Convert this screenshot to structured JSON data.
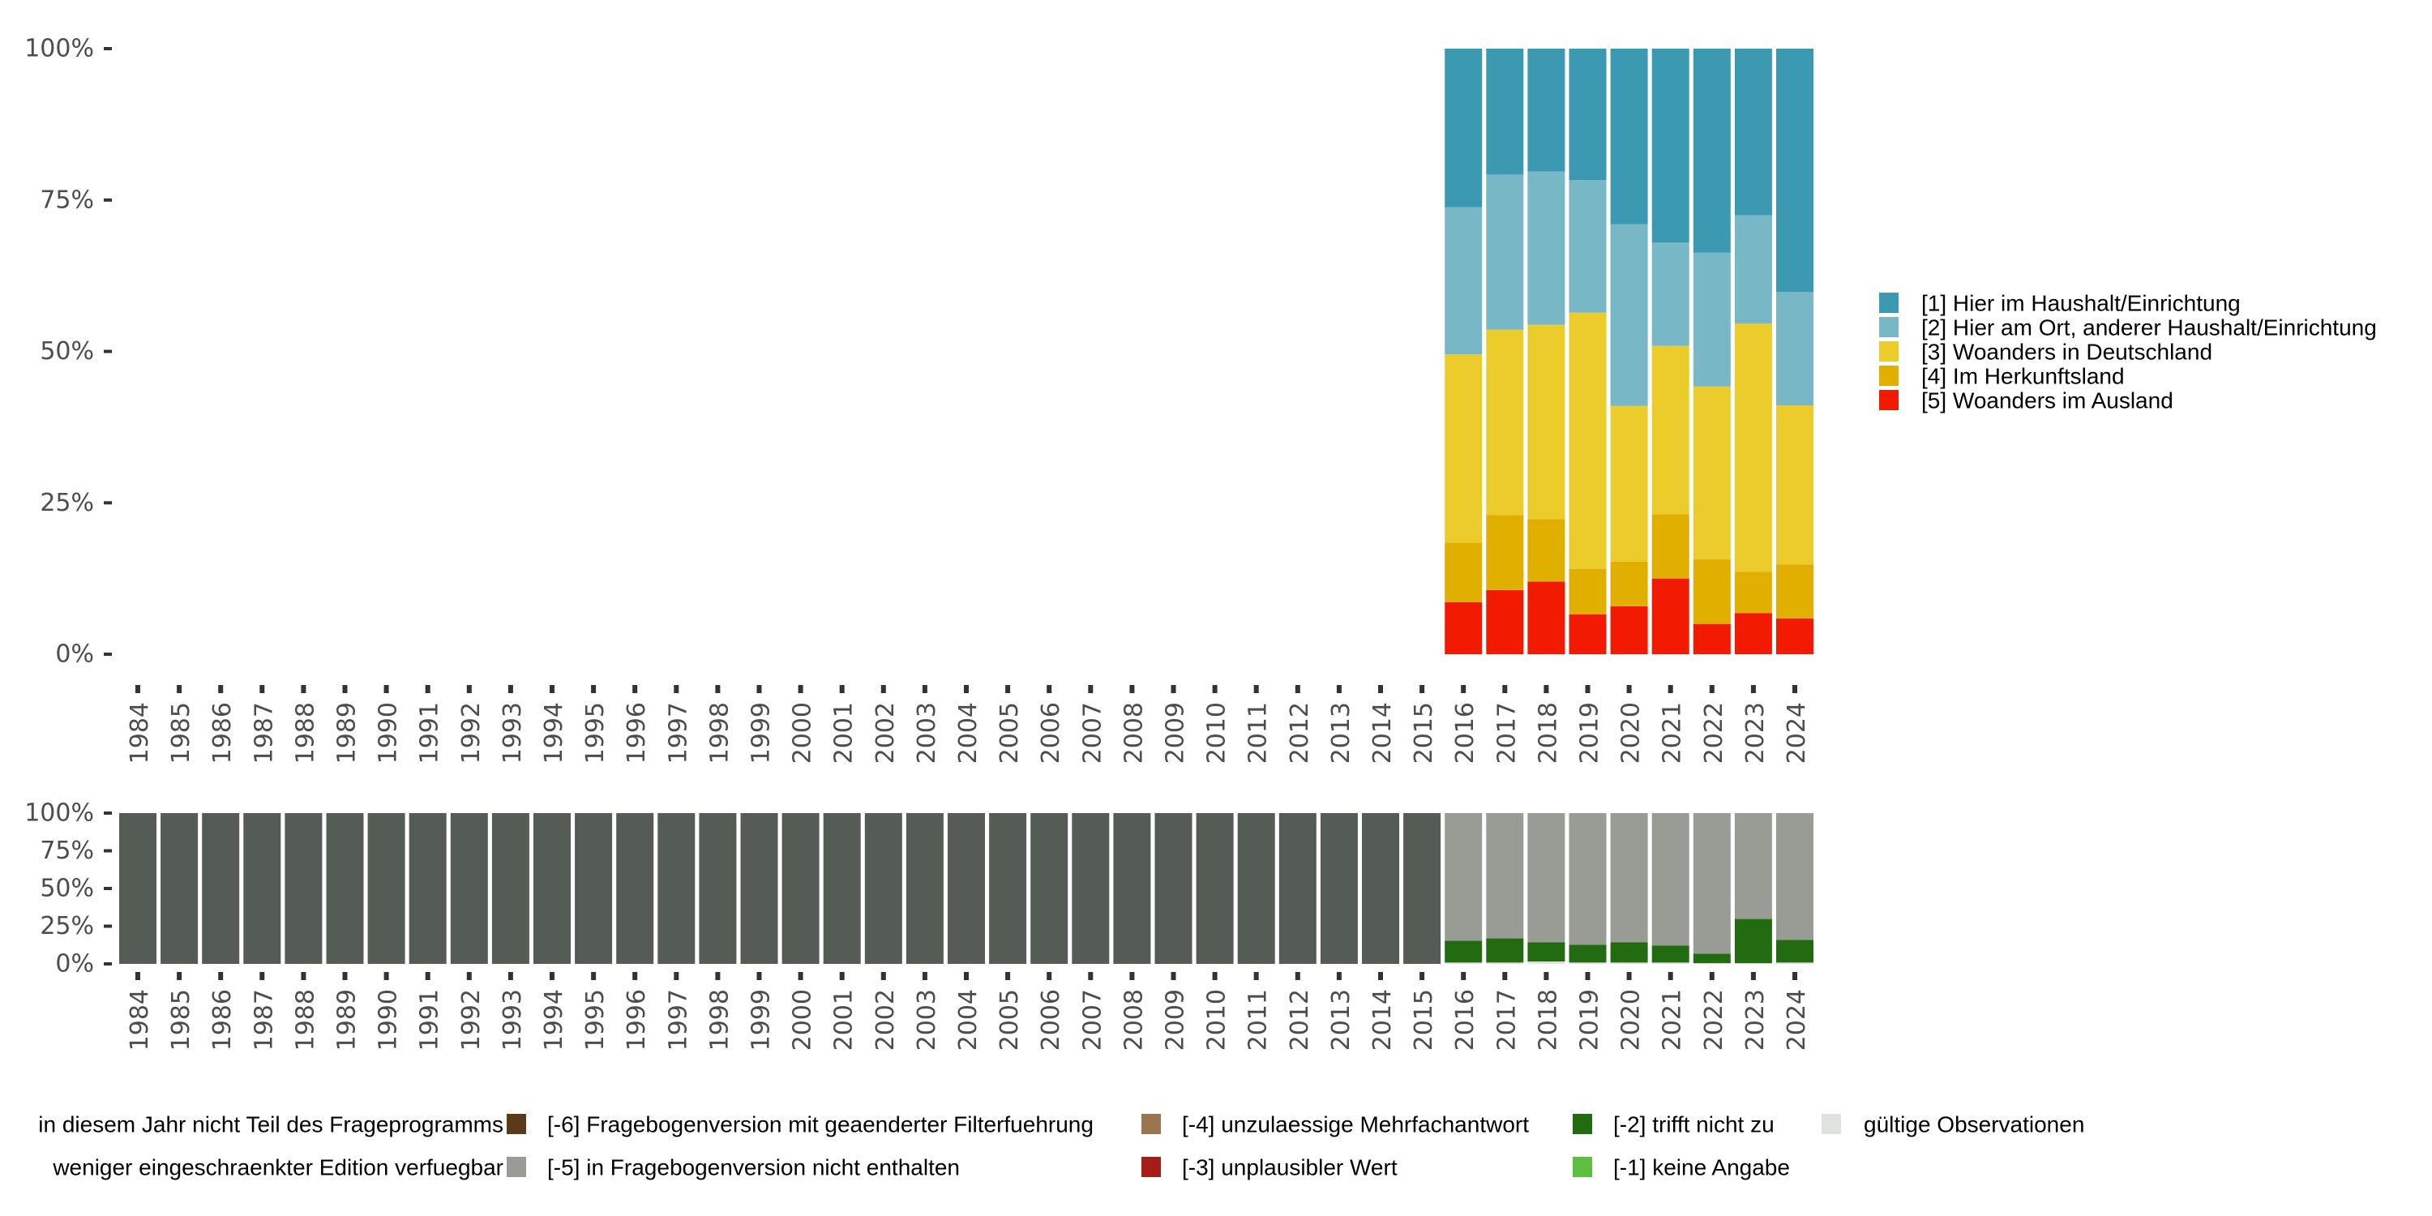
{
  "chart_data": [
    {
      "type": "bar",
      "stacked": true,
      "position": "top",
      "xlabel": "",
      "ylabel": "",
      "ylim": [
        0,
        1
      ],
      "yticks": [
        "0%",
        "25%",
        "50%",
        "75%",
        "100%"
      ],
      "categories": [
        "1984",
        "1985",
        "1986",
        "1987",
        "1988",
        "1989",
        "1990",
        "1991",
        "1992",
        "1993",
        "1994",
        "1995",
        "1996",
        "1997",
        "1998",
        "1999",
        "2000",
        "2001",
        "2002",
        "2003",
        "2004",
        "2005",
        "2006",
        "2007",
        "2008",
        "2009",
        "2010",
        "2011",
        "2012",
        "2013",
        "2014",
        "2015",
        "2016",
        "2017",
        "2018",
        "2019",
        "2020",
        "2021",
        "2022",
        "2023",
        "2024"
      ],
      "legend_position": "right",
      "series": [
        {
          "name": "[5] Woanders im Ausland",
          "color": "#f21a00",
          "values": [
            null,
            null,
            null,
            null,
            null,
            null,
            null,
            null,
            null,
            null,
            null,
            null,
            null,
            null,
            null,
            null,
            null,
            null,
            null,
            null,
            null,
            null,
            null,
            null,
            null,
            null,
            null,
            null,
            null,
            null,
            null,
            null,
            8.6,
            10.6,
            12.0,
            6.6,
            7.9,
            12.5,
            5.0,
            6.8,
            5.9
          ]
        },
        {
          "name": "[4] Im Herkunftsland",
          "color": "#e1af00",
          "values": [
            null,
            null,
            null,
            null,
            null,
            null,
            null,
            null,
            null,
            null,
            null,
            null,
            null,
            null,
            null,
            null,
            null,
            null,
            null,
            null,
            null,
            null,
            null,
            null,
            null,
            null,
            null,
            null,
            null,
            null,
            null,
            null,
            9.8,
            12.4,
            10.3,
            7.5,
            7.4,
            10.6,
            10.7,
            6.8,
            8.9
          ]
        },
        {
          "name": "[3] Woanders in Deutschland",
          "color": "#ebcc2a",
          "values": [
            null,
            null,
            null,
            null,
            null,
            null,
            null,
            null,
            null,
            null,
            null,
            null,
            null,
            null,
            null,
            null,
            null,
            null,
            null,
            null,
            null,
            null,
            null,
            null,
            null,
            null,
            null,
            null,
            null,
            null,
            null,
            null,
            31.1,
            30.6,
            32.1,
            42.3,
            25.7,
            27.8,
            28.5,
            41.0,
            26.3
          ]
        },
        {
          "name": "[2] Hier am Ort, anderer Haushalt/Einrichtung",
          "color": "#78b7c5",
          "values": [
            null,
            null,
            null,
            null,
            null,
            null,
            null,
            null,
            null,
            null,
            null,
            null,
            null,
            null,
            null,
            null,
            null,
            null,
            null,
            null,
            null,
            null,
            null,
            null,
            null,
            null,
            null,
            null,
            null,
            null,
            null,
            null,
            24.3,
            25.6,
            25.3,
            21.9,
            30.0,
            17.1,
            22.1,
            17.9,
            18.7
          ]
        },
        {
          "name": "[1] Hier im Haushalt/Einrichtung",
          "color": "#3b9ab2",
          "values": [
            null,
            null,
            null,
            null,
            null,
            null,
            null,
            null,
            null,
            null,
            null,
            null,
            null,
            null,
            null,
            null,
            null,
            null,
            null,
            null,
            null,
            null,
            null,
            null,
            null,
            null,
            null,
            null,
            null,
            null,
            null,
            null,
            26.2,
            20.8,
            20.3,
            21.7,
            29.0,
            32.0,
            33.7,
            27.5,
            40.2
          ]
        }
      ],
      "legend": [
        {
          "label": "[1] Hier im Haushalt/Einrichtung",
          "color": "#3b9ab2"
        },
        {
          "label": "[2] Hier am Ort, anderer Haushalt/Einrichtung",
          "color": "#78b7c5"
        },
        {
          "label": "[3] Woanders in Deutschland",
          "color": "#ebcc2a"
        },
        {
          "label": "[4] Im Herkunftsland",
          "color": "#e1af00"
        },
        {
          "label": "[5] Woanders im Ausland",
          "color": "#f21a00"
        }
      ]
    },
    {
      "type": "bar",
      "stacked": true,
      "position": "bottom",
      "xlabel": "",
      "ylabel": "",
      "ylim": [
        0,
        1
      ],
      "yticks": [
        "0%",
        "25%",
        "50%",
        "75%",
        "100%"
      ],
      "categories": [
        "1984",
        "1985",
        "1986",
        "1987",
        "1988",
        "1989",
        "1990",
        "1991",
        "1992",
        "1993",
        "1994",
        "1995",
        "1996",
        "1997",
        "1998",
        "1999",
        "2000",
        "2001",
        "2002",
        "2003",
        "2004",
        "2005",
        "2006",
        "2007",
        "2008",
        "2009",
        "2010",
        "2011",
        "2012",
        "2013",
        "2014",
        "2015",
        "2016",
        "2017",
        "2018",
        "2019",
        "2020",
        "2021",
        "2022",
        "2023",
        "2024"
      ],
      "legend_position": "bottom",
      "series": [
        {
          "name": "gültige Observationen",
          "color": "#dfe3de",
          "values": [
            0,
            0,
            0,
            0,
            0,
            0,
            0,
            0,
            0,
            0,
            0,
            0,
            0,
            0,
            0,
            0,
            0,
            0,
            0,
            0,
            0,
            0,
            0,
            0,
            0,
            0,
            0,
            0,
            0,
            0,
            0,
            0,
            0.9,
            0.9,
            1.6,
            0.9,
            0.9,
            0.9,
            0.5,
            0.5,
            0.9
          ]
        },
        {
          "name": "[-2] trifft nicht zu",
          "color": "#226b10",
          "values": [
            0,
            0,
            0,
            0,
            0,
            0,
            0,
            0,
            0,
            0,
            0,
            0,
            0,
            0,
            0,
            0,
            0,
            0,
            0,
            0,
            0,
            0,
            0,
            0,
            0,
            0,
            0,
            0,
            0,
            0,
            0,
            0,
            14.4,
            16.0,
            12.8,
            11.8,
            13.5,
            11.2,
            6.3,
            29.3,
            15.0
          ]
        },
        {
          "name": "[-5] in Fragebogenversion nicht enthalten",
          "color": "#989c95",
          "values": [
            0,
            0,
            0,
            0,
            0,
            0,
            0,
            0,
            0,
            0,
            0,
            0,
            0,
            0,
            0,
            0,
            0,
            0,
            0,
            0,
            0,
            0,
            0,
            0,
            0,
            0,
            0,
            0,
            0,
            0,
            0,
            0,
            84.7,
            83.1,
            85.6,
            87.3,
            85.6,
            87.9,
            93.2,
            70.2,
            84.1
          ]
        },
        {
          "name": "in diesem Jahr nicht Teil des Frageprogramms",
          "color": "#555b55",
          "values": [
            100,
            100,
            100,
            100,
            100,
            100,
            100,
            100,
            100,
            100,
            100,
            100,
            100,
            100,
            100,
            100,
            100,
            100,
            100,
            100,
            100,
            100,
            100,
            100,
            100,
            100,
            100,
            100,
            100,
            100,
            100,
            100,
            0,
            0,
            0,
            0,
            0,
            0,
            0,
            0,
            0
          ]
        }
      ],
      "legend": [
        {
          "label": "in diesem Jahr nicht Teil des Frageprogramms",
          "color": null,
          "align": "right"
        },
        {
          "label": "weniger eingeschraenkter Edition verfuegbar",
          "color": null,
          "align": "right"
        },
        {
          "label": "[-6] Fragebogenversion mit geaenderter Filterfuehrung",
          "color": "#5b3a19"
        },
        {
          "label": "[-5] in Fragebogenversion nicht enthalten",
          "color": "#989c95"
        },
        {
          "label": "[-4] unzulaessige Mehrfachantwort",
          "color": "#9a7650"
        },
        {
          "label": "[-3] unplausibler Wert",
          "color": "#a81c18"
        },
        {
          "label": "[-2] trifft nicht zu",
          "color": "#226b10"
        },
        {
          "label": "[-1] keine Angabe",
          "color": "#5cbf41"
        },
        {
          "label": "gültige Observationen",
          "color": "#dfe3de"
        }
      ]
    }
  ]
}
